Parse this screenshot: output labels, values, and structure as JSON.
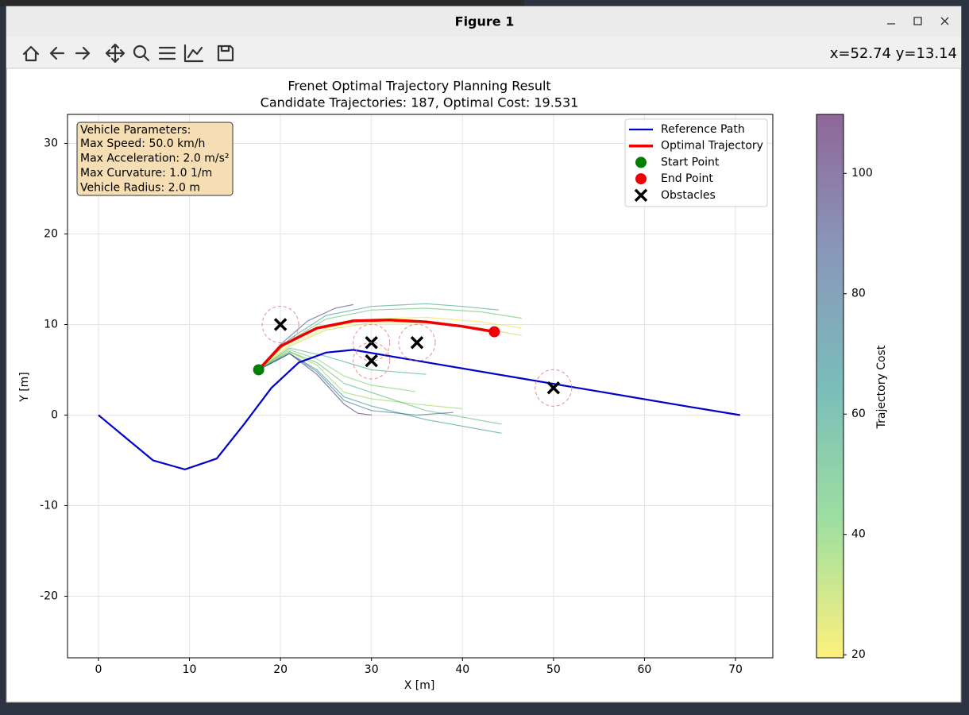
{
  "window": {
    "title": "Figure 1",
    "coords": "x=52.74 y=13.14"
  },
  "chart_data": {
    "type": "line",
    "title": "Frenet Optimal Trajectory Planning Result",
    "subtitle": "Candidate Trajectories: 187, Optimal Cost: 19.531",
    "xlabel": "X [m]",
    "ylabel": "Y [m]",
    "xlim": [
      -3.4,
      74.1
    ],
    "ylim": [
      -26.8,
      33.2
    ],
    "xticks": [
      0,
      10,
      20,
      30,
      40,
      50,
      60,
      70
    ],
    "yticks": [
      -20,
      -10,
      0,
      10,
      20,
      30
    ],
    "grid": true,
    "legend": "upper right",
    "series": [
      {
        "name": "Reference Path",
        "color": "#0000cc",
        "style": "line",
        "x": [
          0,
          3,
          6,
          9.5,
          13,
          16,
          19,
          22,
          25,
          28,
          35,
          45,
          55,
          65,
          70.5
        ],
        "y": [
          0,
          -2.5,
          -5,
          -6,
          -4.8,
          -1,
          3,
          5.8,
          6.9,
          7.2,
          6.0,
          4.3,
          2.6,
          0.9,
          0
        ]
      },
      {
        "name": "Optimal Trajectory",
        "color": "#ee0000",
        "style": "line",
        "x": [
          17.6,
          20,
          24,
          28,
          32,
          36,
          40,
          43.5
        ],
        "y": [
          5,
          7.6,
          9.6,
          10.4,
          10.5,
          10.3,
          9.8,
          9.2
        ]
      },
      {
        "name": "Start Point",
        "color": "#008000",
        "style": "dot",
        "x": [
          17.6
        ],
        "y": [
          5
        ]
      },
      {
        "name": "End Point",
        "color": "#ee0000",
        "style": "dot",
        "x": [
          43.5
        ],
        "y": [
          9.2
        ]
      },
      {
        "name": "Obstacles",
        "color": "#000000",
        "style": "x",
        "x": [
          20,
          30,
          30,
          35,
          50
        ],
        "y": [
          10,
          8,
          6,
          8,
          3
        ]
      }
    ],
    "candidates": [
      {
        "cost": 22,
        "x": [
          17.6,
          21,
          25,
          30,
          36,
          42,
          46.5
        ],
        "y": [
          5,
          7.8,
          9.6,
          10.6,
          10.8,
          10.3,
          9.6
        ]
      },
      {
        "cost": 30,
        "x": [
          17.6,
          21,
          25,
          30,
          36,
          42,
          46.5
        ],
        "y": [
          5,
          7.6,
          9.4,
          10.2,
          10.2,
          9.6,
          8.8
        ]
      },
      {
        "cost": 45,
        "x": [
          17.6,
          21,
          25,
          30,
          36,
          42,
          46.5
        ],
        "y": [
          5,
          8.2,
          10.6,
          11.6,
          11.8,
          11.4,
          10.7
        ]
      },
      {
        "cost": 60,
        "x": [
          17.6,
          21,
          25,
          30,
          36,
          40,
          44
        ],
        "y": [
          5,
          8.4,
          11,
          12,
          12.3,
          12,
          11.6
        ]
      },
      {
        "cost": 90,
        "x": [
          17.6,
          20,
          23,
          26,
          28
        ],
        "y": [
          5,
          7.8,
          10.4,
          11.8,
          12.2
        ]
      },
      {
        "cost": 35,
        "x": [
          17.6,
          21,
          24,
          27,
          30,
          35,
          40
        ],
        "y": [
          5,
          7,
          5.5,
          2.5,
          1.8,
          1.2,
          0.7
        ]
      },
      {
        "cost": 50,
        "x": [
          17.6,
          21,
          24,
          27,
          30,
          36,
          44.3
        ],
        "y": [
          5,
          7,
          5.8,
          3.5,
          2.5,
          0.5,
          -1
        ]
      },
      {
        "cost": 65,
        "x": [
          17.6,
          21,
          24,
          27,
          30,
          36,
          44.3
        ],
        "y": [
          5,
          6.8,
          5,
          2,
          1,
          -0.5,
          -2
        ]
      },
      {
        "cost": 100,
        "x": [
          17.6,
          21,
          24,
          27,
          28.5,
          30
        ],
        "y": [
          5,
          6.8,
          4.5,
          1.2,
          0.2,
          0
        ]
      },
      {
        "cost": 80,
        "x": [
          17.6,
          21,
          24,
          27,
          30,
          35,
          39
        ],
        "y": [
          5,
          6.8,
          4.8,
          1.6,
          0.5,
          0,
          0.3
        ]
      },
      {
        "cost": 40,
        "x": [
          17.6,
          21,
          24,
          27,
          30,
          34.8
        ],
        "y": [
          5,
          7.2,
          6.2,
          4.3,
          3.3,
          2.6
        ]
      },
      {
        "cost": 55,
        "x": [
          17.6,
          21,
          25,
          30,
          36
        ],
        "y": [
          5,
          7.4,
          6.5,
          5,
          4.5
        ]
      }
    ],
    "colorbar": {
      "label": "Trajectory Cost",
      "lim": [
        19.5,
        109.8
      ],
      "ticks": [
        20,
        40,
        60,
        80,
        100
      ],
      "colormap": [
        "#fde725",
        "#5ec962",
        "#21918c",
        "#3b528b",
        "#440154"
      ],
      "opacity": 0.6
    },
    "info_box": {
      "title": "Vehicle Parameters:",
      "lines": [
        "Max Speed: 50.0 km/h",
        "Max Acceleration: 2.0 m/s²",
        "Max Curvature: 1.0 1/m",
        "Vehicle Radius: 2.0 m"
      ]
    }
  }
}
